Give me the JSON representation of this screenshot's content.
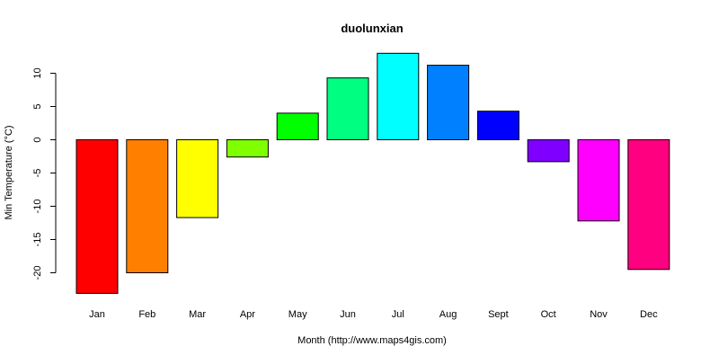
{
  "chart_data": {
    "type": "bar",
    "title": "duolunxian",
    "xlabel": "Month (http://www.maps4gis.com)",
    "ylabel": "Min Temperature (°C)",
    "categories": [
      "Jan",
      "Feb",
      "Mar",
      "Apr",
      "May",
      "Jun",
      "Jul",
      "Aug",
      "Sept",
      "Oct",
      "Nov",
      "Dec"
    ],
    "values": [
      -23.1,
      -20.0,
      -11.7,
      -2.6,
      4.0,
      9.3,
      13.0,
      11.2,
      4.3,
      -3.3,
      -12.2,
      -19.5
    ],
    "colors": [
      "#FF0000",
      "#FF8000",
      "#FFFF00",
      "#80FF00",
      "#00FF00",
      "#00FF80",
      "#00FFFF",
      "#0080FF",
      "#0000FF",
      "#8000FF",
      "#FF00FF",
      "#FF0080"
    ],
    "yticks": [
      "-20",
      "-15",
      "-10",
      "-5",
      "0",
      "5",
      "10"
    ],
    "ylim": [
      -24,
      14
    ],
    "grid": false,
    "legend": "none"
  }
}
